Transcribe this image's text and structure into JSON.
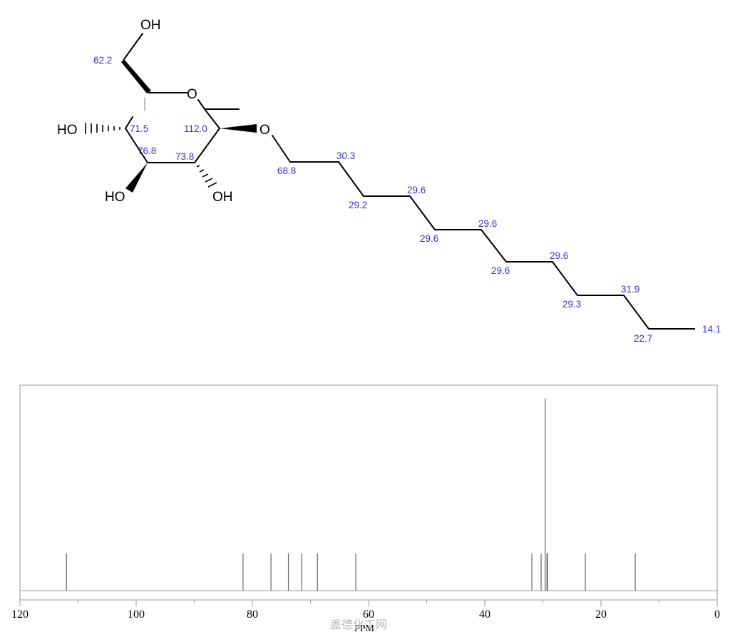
{
  "molecule": {
    "atoms": {
      "oh_top": "OH",
      "ring_o": "O",
      "oh_left": "HO",
      "oh_bottom_left": "HO",
      "oh_bottom_right": "OH",
      "ether_o": "O"
    },
    "shifts": {
      "c6": "62.2",
      "c4": "71.5",
      "c1": "112.0",
      "c3": "76.8",
      "c2": "73.8",
      "chain_1": "68.8",
      "chain_2": "30.3",
      "chain_3": "29.2",
      "chain_4": "29.6",
      "chain_5": "29.6",
      "chain_6": "29.6",
      "chain_7": "29.6",
      "chain_8": "29.6",
      "chain_9": "29.3",
      "chain_10": "31.9",
      "chain_11": "22.7",
      "chain_12": "14.1"
    },
    "label_color": "#3333cc",
    "bond_color": "#000000"
  },
  "chart_data": {
    "type": "bar",
    "xlabel": "PPM",
    "xlim": [
      120,
      0
    ],
    "x_reversed": true,
    "ticks": [
      120,
      100,
      80,
      60,
      40,
      20,
      0
    ],
    "tick_labels": [
      "120",
      "100",
      "80",
      "60",
      "40",
      "20",
      "0"
    ],
    "peaks": [
      {
        "ppm": 112.0,
        "intensity": 0.19
      },
      {
        "ppm": 81.6,
        "intensity": 0.19
      },
      {
        "ppm": 76.8,
        "intensity": 0.19
      },
      {
        "ppm": 73.8,
        "intensity": 0.19
      },
      {
        "ppm": 71.5,
        "intensity": 0.19
      },
      {
        "ppm": 68.8,
        "intensity": 0.19
      },
      {
        "ppm": 62.2,
        "intensity": 0.19
      },
      {
        "ppm": 31.9,
        "intensity": 0.19
      },
      {
        "ppm": 30.3,
        "intensity": 0.19
      },
      {
        "ppm": 29.6,
        "intensity": 0.98
      },
      {
        "ppm": 29.3,
        "intensity": 0.19
      },
      {
        "ppm": 29.2,
        "intensity": 0.19
      },
      {
        "ppm": 22.7,
        "intensity": 0.19
      },
      {
        "ppm": 14.1,
        "intensity": 0.19
      }
    ],
    "line_color": "#666666"
  },
  "watermark": "盖德化工网"
}
